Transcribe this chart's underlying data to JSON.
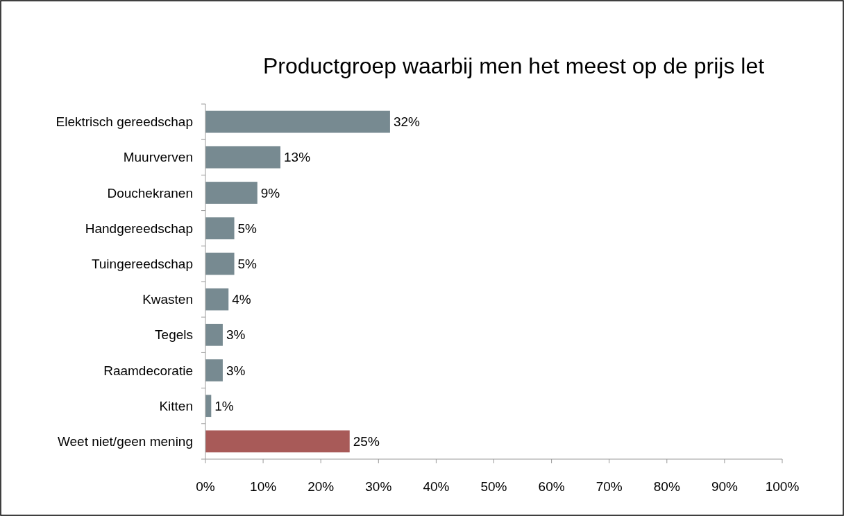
{
  "chart_data": {
    "type": "bar",
    "orientation": "horizontal",
    "title": "Productgroep waarbij men het meest op de prijs let",
    "categories": [
      "Elektrisch gereedschap",
      "Muurverven",
      "Douchekranen",
      "Handgereedschap",
      "Tuingereedschap",
      "Kwasten",
      "Tegels",
      "Raamdecoratie",
      "Kitten",
      "Weet niet/geen mening"
    ],
    "values": [
      32,
      13,
      9,
      5,
      5,
      4,
      3,
      3,
      1,
      25
    ],
    "colors": [
      "#778a91",
      "#778a91",
      "#778a91",
      "#778a91",
      "#778a91",
      "#778a91",
      "#778a91",
      "#778a91",
      "#778a91",
      "#a85a58"
    ],
    "xlim": [
      0,
      100
    ],
    "xticks": [
      {
        "value": 0,
        "label": "0%"
      },
      {
        "value": 10,
        "label": "10%"
      },
      {
        "value": 20,
        "label": "20%"
      },
      {
        "value": 30,
        "label": "30%"
      },
      {
        "value": 40,
        "label": "40%"
      },
      {
        "value": 50,
        "label": "50%"
      },
      {
        "value": 60,
        "label": "60%"
      },
      {
        "value": 70,
        "label": "70%"
      },
      {
        "value": 80,
        "label": "80%"
      },
      {
        "value": 90,
        "label": "90%"
      },
      {
        "value": 100,
        "label": "100%"
      }
    ],
    "value_labels": [
      "32%",
      "13%",
      "9%",
      "5%",
      "5%",
      "4%",
      "3%",
      "3%",
      "1%",
      "25%"
    ],
    "grid": false
  }
}
